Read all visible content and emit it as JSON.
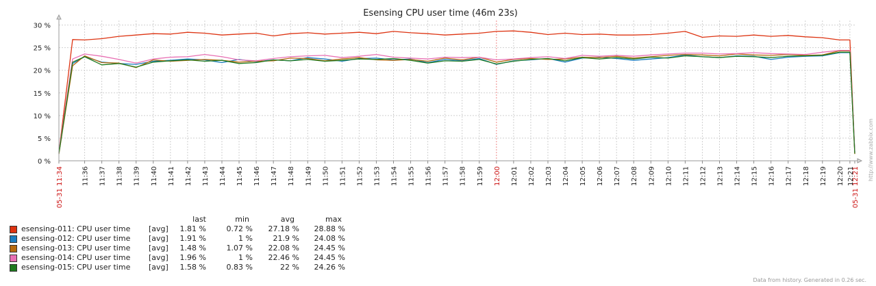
{
  "chart_data": {
    "type": "line",
    "title": "Esensing CPU user time (46m 23s)",
    "y_ticks": [
      "0 %",
      "5 %",
      "10 %",
      "15 %",
      "20 %",
      "25 %",
      "30 %"
    ],
    "ylim": [
      0,
      31
    ],
    "xlim": [
      0,
      46.3833
    ],
    "grid": true,
    "x_ticks": [
      {
        "t": 0,
        "label": "05-31 11:34",
        "red": true
      },
      {
        "t": 1.5,
        "label": "11:36"
      },
      {
        "t": 2.5,
        "label": "11:37"
      },
      {
        "t": 3.5,
        "label": "11:38"
      },
      {
        "t": 4.5,
        "label": "11:39"
      },
      {
        "t": 5.5,
        "label": "11:40"
      },
      {
        "t": 6.5,
        "label": "11:41"
      },
      {
        "t": 7.5,
        "label": "11:42"
      },
      {
        "t": 8.5,
        "label": "11:43"
      },
      {
        "t": 9.5,
        "label": "11:44"
      },
      {
        "t": 10.5,
        "label": "11:45"
      },
      {
        "t": 11.5,
        "label": "11:46"
      },
      {
        "t": 12.5,
        "label": "11:47"
      },
      {
        "t": 13.5,
        "label": "11:48"
      },
      {
        "t": 14.5,
        "label": "11:49"
      },
      {
        "t": 15.5,
        "label": "11:50"
      },
      {
        "t": 16.5,
        "label": "11:51"
      },
      {
        "t": 17.5,
        "label": "11:52"
      },
      {
        "t": 18.5,
        "label": "11:53"
      },
      {
        "t": 19.5,
        "label": "11:54"
      },
      {
        "t": 20.5,
        "label": "11:55"
      },
      {
        "t": 21.5,
        "label": "11:56"
      },
      {
        "t": 22.5,
        "label": "11:57"
      },
      {
        "t": 23.5,
        "label": "11:58"
      },
      {
        "t": 24.5,
        "label": "11:59"
      },
      {
        "t": 25.5,
        "label": "12:00",
        "red": true
      },
      {
        "t": 26.5,
        "label": "12:01"
      },
      {
        "t": 27.5,
        "label": "12:02"
      },
      {
        "t": 28.5,
        "label": "12:03"
      },
      {
        "t": 29.5,
        "label": "12:04"
      },
      {
        "t": 30.5,
        "label": "12:05"
      },
      {
        "t": 31.5,
        "label": "12:06"
      },
      {
        "t": 32.5,
        "label": "12:07"
      },
      {
        "t": 33.5,
        "label": "12:08"
      },
      {
        "t": 34.5,
        "label": "12:09"
      },
      {
        "t": 35.5,
        "label": "12:10"
      },
      {
        "t": 36.5,
        "label": "12:11"
      },
      {
        "t": 37.5,
        "label": "12:12"
      },
      {
        "t": 38.5,
        "label": "12:13"
      },
      {
        "t": 39.5,
        "label": "12:14"
      },
      {
        "t": 40.5,
        "label": "12:15"
      },
      {
        "t": 41.5,
        "label": "12:16"
      },
      {
        "t": 42.5,
        "label": "12:17"
      },
      {
        "t": 43.5,
        "label": "12:18"
      },
      {
        "t": 44.5,
        "label": "12:19"
      },
      {
        "t": 45.5,
        "label": "12:20"
      },
      {
        "t": 46.1,
        "label": "12:21"
      },
      {
        "t": 46.3833,
        "label": "05-31 12:21",
        "red": true
      }
    ],
    "series": [
      {
        "name": "esensing-011: CPU user time",
        "color": "#dd3311",
        "points": [
          [
            0,
            1.8
          ],
          [
            0.8,
            26.8
          ],
          [
            1.5,
            26.7
          ],
          [
            2.5,
            27.0
          ],
          [
            3.5,
            27.5
          ],
          [
            4.5,
            27.8
          ],
          [
            5.5,
            28.1
          ],
          [
            6.5,
            28.0
          ],
          [
            7.5,
            28.4
          ],
          [
            8.5,
            28.2
          ],
          [
            9.5,
            27.8
          ],
          [
            10.5,
            28.0
          ],
          [
            11.5,
            28.2
          ],
          [
            12.5,
            27.6
          ],
          [
            13.5,
            28.1
          ],
          [
            14.5,
            28.3
          ],
          [
            15.5,
            28.0
          ],
          [
            16.5,
            28.2
          ],
          [
            17.5,
            28.4
          ],
          [
            18.5,
            28.1
          ],
          [
            19.5,
            28.6
          ],
          [
            20.5,
            28.3
          ],
          [
            21.5,
            28.1
          ],
          [
            22.5,
            27.8
          ],
          [
            23.5,
            28.0
          ],
          [
            24.5,
            28.2
          ],
          [
            25.5,
            28.6
          ],
          [
            26.5,
            28.7
          ],
          [
            27.5,
            28.4
          ],
          [
            28.5,
            27.9
          ],
          [
            29.5,
            28.2
          ],
          [
            30.5,
            27.9
          ],
          [
            31.5,
            28.0
          ],
          [
            32.5,
            27.8
          ],
          [
            33.5,
            27.8
          ],
          [
            34.5,
            27.9
          ],
          [
            35.5,
            28.2
          ],
          [
            36.5,
            28.6
          ],
          [
            37.5,
            27.3
          ],
          [
            38.5,
            27.6
          ],
          [
            39.5,
            27.5
          ],
          [
            40.5,
            27.8
          ],
          [
            41.5,
            27.5
          ],
          [
            42.5,
            27.7
          ],
          [
            43.5,
            27.4
          ],
          [
            44.5,
            27.2
          ],
          [
            45.5,
            26.7
          ],
          [
            46.1,
            26.7
          ],
          [
            46.3833,
            1.8
          ]
        ]
      },
      {
        "name": "esensing-012: CPU user time",
        "color": "#1a7dc0",
        "points": [
          [
            0,
            1.9
          ],
          [
            0.8,
            21.5
          ],
          [
            1.5,
            23.0
          ],
          [
            2.5,
            21.8
          ],
          [
            3.5,
            21.5
          ],
          [
            4.5,
            21.3
          ],
          [
            5.5,
            22.0
          ],
          [
            6.5,
            22.2
          ],
          [
            7.5,
            22.5
          ],
          [
            8.5,
            22.3
          ],
          [
            9.5,
            21.7
          ],
          [
            10.5,
            22.4
          ],
          [
            11.5,
            21.9
          ],
          [
            12.5,
            22.3
          ],
          [
            13.5,
            22.1
          ],
          [
            14.5,
            22.8
          ],
          [
            15.5,
            22.5
          ],
          [
            16.5,
            22.0
          ],
          [
            17.5,
            22.6
          ],
          [
            18.5,
            22.7
          ],
          [
            19.5,
            22.3
          ],
          [
            20.5,
            22.5
          ],
          [
            21.5,
            21.7
          ],
          [
            22.5,
            22.4
          ],
          [
            23.5,
            22.1
          ],
          [
            24.5,
            22.6
          ],
          [
            25.5,
            21.3
          ],
          [
            26.5,
            22.1
          ],
          [
            27.5,
            22.3
          ],
          [
            28.5,
            22.6
          ],
          [
            29.5,
            21.8
          ],
          [
            30.5,
            22.7
          ],
          [
            31.5,
            22.9
          ],
          [
            32.5,
            22.6
          ],
          [
            33.5,
            22.2
          ],
          [
            34.5,
            22.5
          ],
          [
            35.5,
            22.8
          ],
          [
            36.5,
            23.4
          ],
          [
            37.5,
            23.0
          ],
          [
            38.5,
            22.8
          ],
          [
            39.5,
            23.2
          ],
          [
            40.5,
            23.1
          ],
          [
            41.5,
            22.4
          ],
          [
            42.5,
            22.9
          ],
          [
            43.5,
            23.1
          ],
          [
            44.5,
            23.2
          ],
          [
            45.5,
            23.9
          ],
          [
            46.1,
            23.9
          ],
          [
            46.3833,
            1.9
          ]
        ]
      },
      {
        "name": "esensing-013: CPU user time",
        "color": "#b56a0f",
        "points": [
          [
            0,
            1.5
          ],
          [
            0.8,
            21.0
          ],
          [
            1.5,
            23.2
          ],
          [
            2.5,
            21.7
          ],
          [
            3.5,
            21.6
          ],
          [
            4.5,
            20.6
          ],
          [
            5.5,
            22.3
          ],
          [
            6.5,
            22.0
          ],
          [
            7.5,
            22.2
          ],
          [
            8.5,
            22.4
          ],
          [
            9.5,
            22.2
          ],
          [
            10.5,
            21.8
          ],
          [
            11.5,
            22.0
          ],
          [
            12.5,
            22.1
          ],
          [
            13.5,
            22.7
          ],
          [
            14.5,
            22.6
          ],
          [
            15.5,
            22.1
          ],
          [
            16.5,
            22.5
          ],
          [
            17.5,
            22.8
          ],
          [
            18.5,
            22.3
          ],
          [
            19.5,
            22.2
          ],
          [
            20.5,
            22.4
          ],
          [
            21.5,
            22.0
          ],
          [
            22.5,
            22.7
          ],
          [
            23.5,
            22.3
          ],
          [
            24.5,
            22.9
          ],
          [
            25.5,
            21.8
          ],
          [
            26.5,
            22.4
          ],
          [
            27.5,
            22.6
          ],
          [
            28.5,
            22.4
          ],
          [
            29.5,
            22.5
          ],
          [
            30.5,
            22.9
          ],
          [
            31.5,
            22.8
          ],
          [
            32.5,
            23.1
          ],
          [
            33.5,
            22.7
          ],
          [
            34.5,
            23.0
          ],
          [
            35.5,
            23.3
          ],
          [
            36.5,
            23.5
          ],
          [
            37.5,
            23.4
          ],
          [
            38.5,
            23.2
          ],
          [
            39.5,
            23.6
          ],
          [
            40.5,
            23.4
          ],
          [
            41.5,
            23.3
          ],
          [
            42.5,
            23.5
          ],
          [
            43.5,
            23.3
          ],
          [
            44.5,
            23.4
          ],
          [
            45.5,
            24.3
          ],
          [
            46.1,
            24.3
          ],
          [
            46.3833,
            1.5
          ]
        ]
      },
      {
        "name": "esensing-014: CPU user time",
        "color": "#e86fb3",
        "points": [
          [
            0,
            2.0
          ],
          [
            0.8,
            22.5
          ],
          [
            1.5,
            23.6
          ],
          [
            2.5,
            23.1
          ],
          [
            3.5,
            22.4
          ],
          [
            4.5,
            21.6
          ],
          [
            5.5,
            22.5
          ],
          [
            6.5,
            22.9
          ],
          [
            7.5,
            23.0
          ],
          [
            8.5,
            23.5
          ],
          [
            9.5,
            23.0
          ],
          [
            10.5,
            22.3
          ],
          [
            11.5,
            22.1
          ],
          [
            12.5,
            22.6
          ],
          [
            13.5,
            23.0
          ],
          [
            14.5,
            23.2
          ],
          [
            15.5,
            23.3
          ],
          [
            16.5,
            22.8
          ],
          [
            17.5,
            23.1
          ],
          [
            18.5,
            23.5
          ],
          [
            19.5,
            22.9
          ],
          [
            20.5,
            22.7
          ],
          [
            21.5,
            22.5
          ],
          [
            22.5,
            22.9
          ],
          [
            23.5,
            22.8
          ],
          [
            24.5,
            22.9
          ],
          [
            25.5,
            22.3
          ],
          [
            26.5,
            22.5
          ],
          [
            27.5,
            22.8
          ],
          [
            28.5,
            23.0
          ],
          [
            29.5,
            22.6
          ],
          [
            30.5,
            23.3
          ],
          [
            31.5,
            23.1
          ],
          [
            32.5,
            23.3
          ],
          [
            33.5,
            23.1
          ],
          [
            34.5,
            23.4
          ],
          [
            35.5,
            23.6
          ],
          [
            36.5,
            23.8
          ],
          [
            37.5,
            23.8
          ],
          [
            38.5,
            23.6
          ],
          [
            39.5,
            23.7
          ],
          [
            40.5,
            23.9
          ],
          [
            41.5,
            23.7
          ],
          [
            42.5,
            23.6
          ],
          [
            43.5,
            23.5
          ],
          [
            44.5,
            24.0
          ],
          [
            45.5,
            24.4
          ],
          [
            46.1,
            24.4
          ],
          [
            46.3833,
            2.0
          ]
        ]
      },
      {
        "name": "esensing-015: CPU user time",
        "color": "#1f7a1f",
        "points": [
          [
            0,
            1.6
          ],
          [
            0.8,
            21.8
          ],
          [
            1.5,
            23.0
          ],
          [
            2.5,
            21.2
          ],
          [
            3.5,
            21.5
          ],
          [
            4.5,
            20.7
          ],
          [
            5.5,
            21.8
          ],
          [
            6.5,
            22.1
          ],
          [
            7.5,
            22.3
          ],
          [
            8.5,
            22.0
          ],
          [
            9.5,
            22.2
          ],
          [
            10.5,
            21.5
          ],
          [
            11.5,
            21.7
          ],
          [
            12.5,
            22.3
          ],
          [
            13.5,
            22.1
          ],
          [
            14.5,
            22.4
          ],
          [
            15.5,
            22.0
          ],
          [
            16.5,
            22.2
          ],
          [
            17.5,
            22.5
          ],
          [
            18.5,
            22.4
          ],
          [
            19.5,
            22.6
          ],
          [
            20.5,
            22.2
          ],
          [
            21.5,
            21.6
          ],
          [
            22.5,
            22.1
          ],
          [
            23.5,
            22.0
          ],
          [
            24.5,
            22.4
          ],
          [
            25.5,
            21.4
          ],
          [
            26.5,
            22.0
          ],
          [
            27.5,
            22.4
          ],
          [
            28.5,
            22.6
          ],
          [
            29.5,
            22.1
          ],
          [
            30.5,
            22.8
          ],
          [
            31.5,
            22.5
          ],
          [
            32.5,
            22.8
          ],
          [
            33.5,
            22.5
          ],
          [
            34.5,
            22.9
          ],
          [
            35.5,
            22.7
          ],
          [
            36.5,
            23.2
          ],
          [
            37.5,
            23.0
          ],
          [
            38.5,
            22.8
          ],
          [
            39.5,
            23.1
          ],
          [
            40.5,
            23.0
          ],
          [
            41.5,
            22.8
          ],
          [
            42.5,
            23.1
          ],
          [
            43.5,
            23.2
          ],
          [
            44.5,
            23.3
          ],
          [
            45.5,
            24.0
          ],
          [
            46.1,
            24.0
          ],
          [
            46.3833,
            1.6
          ]
        ]
      }
    ]
  },
  "legend": {
    "headers": {
      "last": "last",
      "min": "min",
      "avg": "avg",
      "max": "max"
    },
    "func": "[avg]",
    "rows": [
      {
        "name": "esensing-011: CPU user time",
        "color": "#dd3311",
        "last": "1.81 %",
        "min": "0.72 %",
        "avg": "27.18 %",
        "max": "28.88 %"
      },
      {
        "name": "esensing-012: CPU user time",
        "color": "#1a7dc0",
        "last": "1.91 %",
        "min": "1 %",
        "avg": "21.9 %",
        "max": "24.08 %"
      },
      {
        "name": "esensing-013: CPU user time",
        "color": "#b56a0f",
        "last": "1.48 %",
        "min": "1.07 %",
        "avg": "22.08 %",
        "max": "24.45 %"
      },
      {
        "name": "esensing-014: CPU user time",
        "color": "#e86fb3",
        "last": "1.96 %",
        "min": "1 %",
        "avg": "22.46 %",
        "max": "24.45 %"
      },
      {
        "name": "esensing-015: CPU user time",
        "color": "#1f7a1f",
        "last": "1.58 %",
        "min": "0.83 %",
        "avg": "22 %",
        "max": "24.26 %"
      }
    ]
  },
  "footer": "Data from history. Generated in 0.26 sec.",
  "side_url": "http://www.zabbix.com"
}
